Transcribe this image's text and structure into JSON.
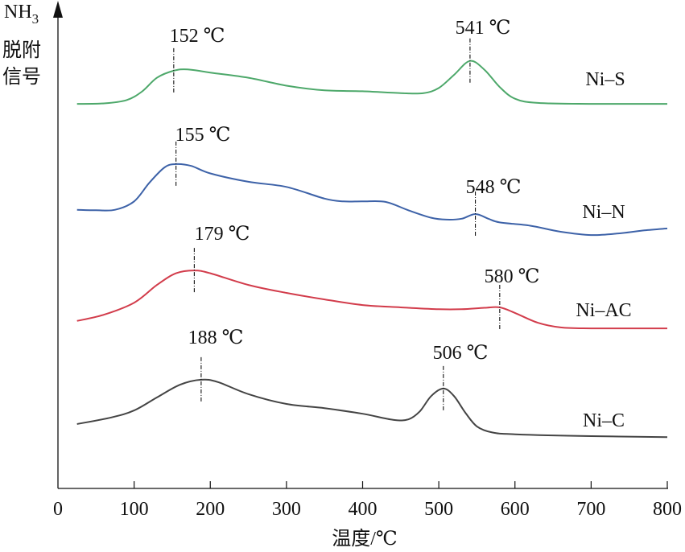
{
  "chart_data": {
    "type": "line",
    "title": "",
    "xlabel": "温度/℃",
    "ylabel_lines": [
      "NH",
      "3",
      "脱附",
      "信号"
    ],
    "ylabel": "NH3脱附信号",
    "xlim": [
      0,
      800
    ],
    "ylim": [
      0,
      100
    ],
    "xticks": [
      0,
      100,
      200,
      300,
      400,
      500,
      600,
      700,
      800
    ],
    "xtick_labels": [
      "0",
      "100",
      "200",
      "300",
      "400",
      "500",
      "600",
      "700",
      "800"
    ],
    "grid": false,
    "series": [
      {
        "name": "Ni–S",
        "color": "#4da86a",
        "x": [
          25,
          60,
          90,
          110,
          130,
          152,
          170,
          200,
          250,
          300,
          350,
          400,
          450,
          480,
          500,
          520,
          541,
          560,
          580,
          600,
          630,
          700,
          800
        ],
        "y": [
          82.4,
          82.5,
          83.2,
          85,
          88,
          89.5,
          89.8,
          89.1,
          88,
          86.3,
          85.3,
          85.1,
          84.7,
          84.7,
          85.8,
          88.6,
          91.6,
          89.7,
          86,
          83.5,
          82.6,
          82.4,
          82.4
        ],
        "peaks": [
          {
            "x": 152,
            "label": "152 ℃"
          },
          {
            "x": 541,
            "label": "541 ℃"
          }
        ]
      },
      {
        "name": "Ni–N",
        "color": "#3d62a8",
        "x": [
          25,
          50,
          75,
          100,
          120,
          140,
          155,
          175,
          200,
          250,
          300,
          350,
          375,
          400,
          430,
          460,
          490,
          510,
          530,
          548,
          565,
          580,
          620,
          660,
          700,
          740,
          770,
          800
        ],
        "y": [
          59.7,
          59.6,
          59.7,
          61.5,
          65.5,
          68.8,
          69.5,
          69.1,
          67.5,
          65.7,
          64.6,
          62.1,
          61.5,
          61.5,
          61.4,
          59.6,
          58,
          57.6,
          57.8,
          58.8,
          57.8,
          57,
          56.3,
          55,
          54.3,
          54.7,
          55.3,
          55.7
        ],
        "peaks": [
          {
            "x": 155,
            "label": "155 ℃"
          },
          {
            "x": 548,
            "label": "548 ℃"
          }
        ]
      },
      {
        "name": "Ni–AC",
        "color": "#d23c4b",
        "x": [
          25,
          60,
          100,
          130,
          155,
          179,
          200,
          250,
          300,
          350,
          400,
          450,
          500,
          530,
          560,
          580,
          600,
          630,
          660,
          700,
          800
        ],
        "y": [
          35.9,
          37.2,
          39.8,
          43.6,
          46.1,
          46.7,
          46.1,
          43.6,
          41.9,
          40.5,
          39.3,
          38.8,
          38.4,
          38.4,
          38.7,
          38.8,
          37.6,
          35.5,
          34.5,
          34.3,
          34.3
        ],
        "peaks": [
          {
            "x": 179,
            "label": "179 ℃"
          },
          {
            "x": 580,
            "label": "580 ℃"
          }
        ]
      },
      {
        "name": "Ni–C",
        "color": "#444444",
        "x": [
          25,
          70,
          100,
          130,
          160,
          188,
          210,
          250,
          300,
          350,
          400,
          440,
          460,
          475,
          490,
          506,
          520,
          535,
          550,
          570,
          600,
          700,
          800
        ],
        "y": [
          13.8,
          15.2,
          16.7,
          19.5,
          22.2,
          23.3,
          22.8,
          20.2,
          18.1,
          17.2,
          16,
          14.7,
          14.8,
          16.5,
          19.8,
          21.4,
          19.8,
          16.2,
          13.3,
          12,
          11.6,
          11.2,
          11.0
        ],
        "peaks": [
          {
            "x": 188,
            "label": "188 ℃"
          },
          {
            "x": 506,
            "label": "506 ℃"
          }
        ]
      }
    ]
  }
}
